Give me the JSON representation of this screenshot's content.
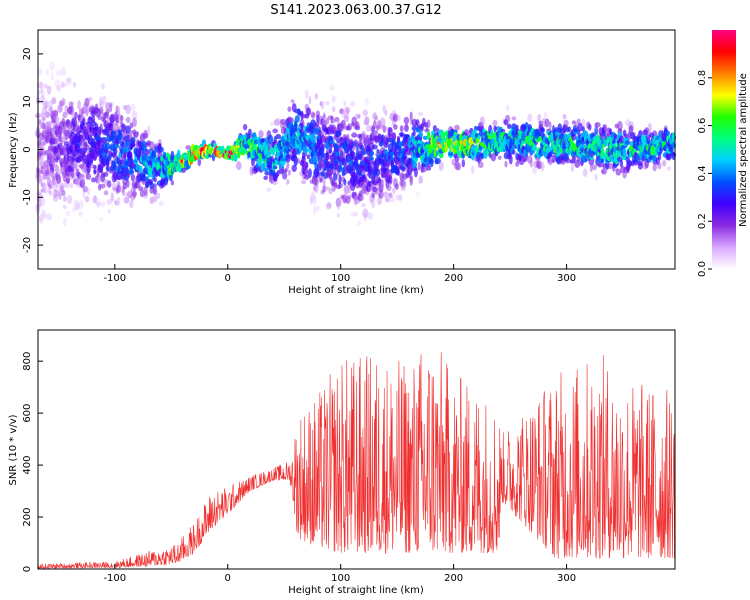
{
  "title": "S141.2023.063.00.37.G12",
  "chart_data": [
    {
      "type": "heatmap",
      "xlabel": "Height of straight line (km)",
      "ylabel": "Frequency (Hz)",
      "xlim": [
        -168,
        396
      ],
      "ylim": [
        -25,
        25
      ],
      "xticks": [
        -100,
        0,
        100,
        200,
        300
      ],
      "yticks": [
        -20,
        -10,
        0,
        10,
        20
      ],
      "grid": false,
      "colorbar": {
        "label": "Normalized spectral amplitude",
        "range": [
          0,
          1
        ],
        "ticks": [
          0.0,
          0.2,
          0.4,
          0.6,
          0.8
        ],
        "colors": [
          "#ffffff",
          "#d9a8ff",
          "#8a2be2",
          "#4000ff",
          "#0050ff",
          "#00d0ff",
          "#00ff80",
          "#20ff00",
          "#ffff00",
          "#ff8000",
          "#ff0000",
          "#ff0080"
        ]
      },
      "ridge": [
        {
          "x": -168,
          "y": 0,
          "amp": 0.15,
          "spread": 14
        },
        {
          "x": -120,
          "y": 1,
          "amp": 0.3,
          "spread": 10
        },
        {
          "x": -90,
          "y": -1,
          "amp": 0.35,
          "spread": 8
        },
        {
          "x": -60,
          "y": -4,
          "amp": 0.45,
          "spread": 5
        },
        {
          "x": -45,
          "y": -3,
          "amp": 0.7,
          "spread": 2
        },
        {
          "x": -30,
          "y": -1,
          "amp": 0.85,
          "spread": 1.5
        },
        {
          "x": -15,
          "y": 0,
          "amp": 0.95,
          "spread": 1
        },
        {
          "x": 0,
          "y": -1,
          "amp": 0.95,
          "spread": 1
        },
        {
          "x": 15,
          "y": 1,
          "amp": 0.6,
          "spread": 3
        },
        {
          "x": 40,
          "y": -2,
          "amp": 0.45,
          "spread": 5
        },
        {
          "x": 60,
          "y": 3,
          "amp": 0.45,
          "spread": 7
        },
        {
          "x": 80,
          "y": 0,
          "amp": 0.35,
          "spread": 9
        },
        {
          "x": 120,
          "y": -3,
          "amp": 0.3,
          "spread": 9
        },
        {
          "x": 160,
          "y": 0,
          "amp": 0.35,
          "spread": 7
        },
        {
          "x": 185,
          "y": 1,
          "amp": 0.7,
          "spread": 3
        },
        {
          "x": 210,
          "y": 1,
          "amp": 0.65,
          "spread": 3
        },
        {
          "x": 250,
          "y": 2,
          "amp": 0.5,
          "spread": 4
        },
        {
          "x": 300,
          "y": 1,
          "amp": 0.5,
          "spread": 4
        },
        {
          "x": 350,
          "y": 0,
          "amp": 0.5,
          "spread": 4
        },
        {
          "x": 396,
          "y": 1,
          "amp": 0.5,
          "spread": 3
        }
      ]
    },
    {
      "type": "line",
      "xlabel": "Height of straight line (km)",
      "ylabel": "SNR (10 * v/v)",
      "xlim": [
        -168,
        396
      ],
      "ylim": [
        0,
        920
      ],
      "xticks": [
        -100,
        0,
        100,
        200,
        300
      ],
      "yticks": [
        0,
        200,
        400,
        600,
        800
      ],
      "grid": false,
      "color": "#f03030",
      "envelope": {
        "x": [
          -168,
          -100,
          -70,
          -45,
          -30,
          -15,
          0,
          20,
          40,
          55,
          62,
          80,
          100,
          130,
          160,
          180,
          200,
          220,
          240,
          242,
          260,
          290,
          310,
          330,
          350,
          370,
          396
        ],
        "lower": [
          2,
          5,
          10,
          20,
          60,
          150,
          210,
          300,
          340,
          340,
          120,
          80,
          60,
          60,
          60,
          60,
          60,
          60,
          60,
          260,
          180,
          40,
          40,
          40,
          40,
          40,
          40
        ],
        "upper": [
          20,
          30,
          70,
          100,
          180,
          300,
          320,
          360,
          390,
          420,
          620,
          680,
          820,
          840,
          800,
          920,
          760,
          720,
          650,
          520,
          620,
          760,
          800,
          840,
          750,
          720,
          700
        ]
      }
    }
  ]
}
